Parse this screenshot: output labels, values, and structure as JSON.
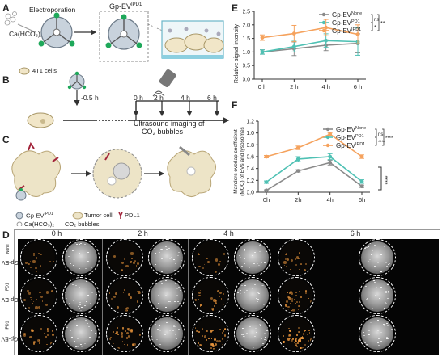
{
  "panel_labels": {
    "a": "A",
    "b": "B",
    "c": "C",
    "d": "D",
    "e": "E",
    "f": "F"
  },
  "schematic_a": {
    "electroporation": "Electroporation",
    "reagent": "Ca(HCO₃)₂",
    "product_base": "Gp-EV",
    "product_sup": "IPD1",
    "cells": "4T1 cells"
  },
  "schematic_b": {
    "injection_time": "-0.5 h",
    "times": [
      "0 h",
      "2 h",
      "4 h",
      "6 h"
    ]
  },
  "schematic_c": {
    "ultrasound_label_line1": "Ultrasound imaging of",
    "ultrasound_label_line2": "CO₂ bubbles",
    "legend_ev_base": "Gp-EV",
    "legend_ev_sup": "IPD1",
    "legend_tumor": "Tumor cell",
    "legend_pdl1": "PDL1",
    "legend_reagent": "Ca(HCO₃)₂",
    "legend_bubbles": "CO₂ bubbles"
  },
  "panel_d": {
    "columns": [
      "0 h",
      "2 h",
      "4 h",
      "6 h"
    ],
    "rows": [
      {
        "base": "Gp-EV",
        "sup": "None"
      },
      {
        "base": "Gp-EV",
        "sup": "PD1"
      },
      {
        "base": "Gp-EV",
        "sup": "IPD1"
      }
    ]
  },
  "colors": {
    "none": "#8a8a8a",
    "pd1": "#4fc1b4",
    "ipd1": "#f5a25d",
    "axis": "#333333"
  },
  "chart_data": [
    {
      "panel": "E",
      "type": "line",
      "x": [
        "0 h",
        "2 h",
        "4 h",
        "6 h"
      ],
      "ylabel": "Relative signal intensity",
      "ylim": [
        0,
        2.5
      ],
      "yticks": [
        "0.0",
        "0.5",
        "1.0",
        "1.5",
        "2.0",
        "2.5"
      ],
      "grid": false,
      "legend_position": "top-right",
      "series": [
        {
          "key": "none",
          "name_base": "Gp-EV",
          "name_sup": "None",
          "values": [
            1.0,
            1.12,
            1.25,
            1.32
          ],
          "err": [
            0.08,
            0.25,
            0.2,
            0.35
          ]
        },
        {
          "key": "pd1",
          "name_base": "Gp-EV",
          "name_sup": "PD1",
          "values": [
            1.0,
            1.2,
            1.42,
            1.38
          ],
          "err": [
            0.08,
            0.2,
            0.25,
            0.5
          ]
        },
        {
          "key": "ipd1",
          "name_base": "Gp-EV",
          "name_sup": "IPD1",
          "values": [
            1.53,
            1.68,
            1.9,
            1.65
          ],
          "err": [
            0.1,
            0.3,
            0.3,
            0.35
          ]
        }
      ],
      "significance": [
        "ns",
        "*",
        "**"
      ]
    },
    {
      "panel": "F",
      "type": "line",
      "x": [
        "0h",
        "2h",
        "4h",
        "6h"
      ],
      "ylabel_line1": "Manders overlap coefficient",
      "ylabel_line2": "(MOC) of EVs and lysosomes",
      "ylim": [
        0.0,
        1.2
      ],
      "yticks": [
        "0.0",
        "0.2",
        "0.4",
        "0.6",
        "0.8",
        "1.0",
        "1.2"
      ],
      "grid": false,
      "legend_position": "top-right",
      "series": [
        {
          "key": "none",
          "name_base": "Gp-EV",
          "name_sup": "None",
          "values": [
            0.03,
            0.36,
            0.5,
            0.1
          ],
          "err": [
            0.01,
            0.02,
            0.04,
            0.02
          ]
        },
        {
          "key": "pd1",
          "name_base": "Gp-EV",
          "name_sup": "PD1",
          "values": [
            0.17,
            0.56,
            0.6,
            0.18
          ],
          "err": [
            0.02,
            0.04,
            0.05,
            0.03
          ]
        },
        {
          "key": "ipd1",
          "name_base": "Gp-EV",
          "name_sup": "IPD1",
          "values": [
            0.6,
            0.75,
            0.98,
            0.6
          ],
          "err": [
            0.02,
            0.03,
            0.02,
            0.03
          ]
        }
      ],
      "significance": [
        "ns",
        "****",
        "****",
        "****"
      ]
    }
  ]
}
